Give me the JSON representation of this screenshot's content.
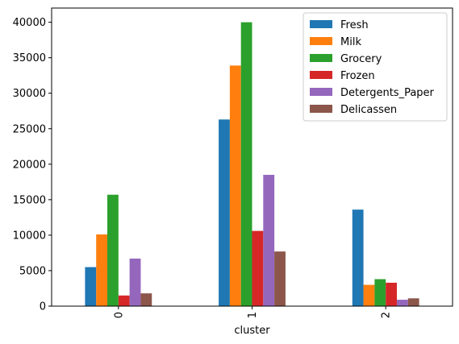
{
  "chart_data": {
    "type": "bar",
    "title": "",
    "xlabel": "cluster",
    "ylabel": "",
    "categories": [
      "0",
      "1",
      "2"
    ],
    "x_tick_rotation": "vertical",
    "ylim": [
      0,
      42000
    ],
    "yticks": [
      0,
      5000,
      10000,
      15000,
      20000,
      25000,
      30000,
      35000,
      40000
    ],
    "ytick_labels": [
      "0",
      "5000",
      "10000",
      "15000",
      "20000",
      "25000",
      "30000",
      "35000",
      "40000"
    ],
    "grid": false,
    "legend_position": "top-right",
    "series": [
      {
        "name": "Fresh",
        "color": "#1f77b4",
        "values": [
          5500,
          26300,
          13600
        ]
      },
      {
        "name": "Milk",
        "color": "#ff7f0e",
        "values": [
          10100,
          33900,
          3000
        ]
      },
      {
        "name": "Grocery",
        "color": "#2ca02c",
        "values": [
          15700,
          40000,
          3800
        ]
      },
      {
        "name": "Frozen",
        "color": "#d62728",
        "values": [
          1500,
          10600,
          3300
        ]
      },
      {
        "name": "Detergents_Paper",
        "color": "#9467bd",
        "values": [
          6700,
          18500,
          900
        ]
      },
      {
        "name": "Delicassen",
        "color": "#8c564b",
        "values": [
          1800,
          7700,
          1100
        ]
      }
    ]
  }
}
